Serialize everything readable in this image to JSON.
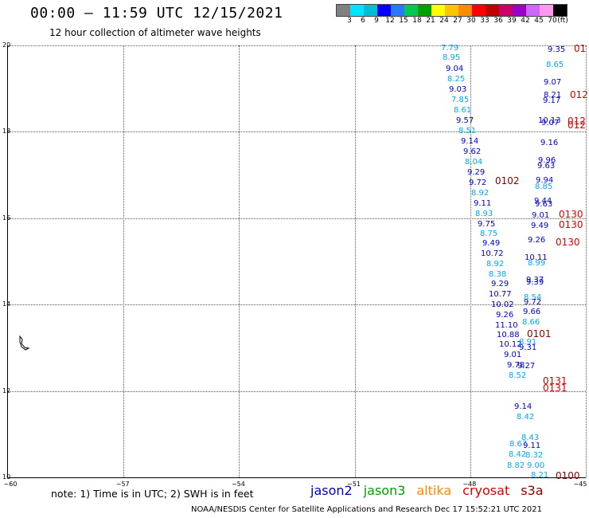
{
  "header": {
    "title": "00:00 – 11:59 UTC 12/15/2021",
    "subtitle": "12 hour collection of altimeter wave heights"
  },
  "legend": {
    "colors": [
      "#808080",
      "#00e5ff",
      "#00bcd4",
      "#0000ff",
      "#2979ff",
      "#00c853",
      "#00a000",
      "#ffff00",
      "#ffc400",
      "#ff8c00",
      "#ff0000",
      "#c00000",
      "#cc0066",
      "#9b00c9",
      "#cc66ff",
      "#ff99ee",
      "#000000"
    ],
    "labels": [
      "3",
      "6",
      "9",
      "12",
      "15",
      "18",
      "21",
      "24",
      "27",
      "30",
      "33",
      "36",
      "39",
      "42",
      "45",
      "70",
      "(ft)"
    ]
  },
  "axes": {
    "y_labels": [
      "20",
      "18",
      "16",
      "14",
      "12",
      "10"
    ],
    "x_labels": [
      "−60",
      "−57",
      "−54",
      "−51",
      "−48",
      "−45"
    ]
  },
  "wave_labels": [
    {
      "text": "7.79",
      "c": "j3"
    },
    {
      "text": "8.95",
      "c": "j3"
    },
    {
      "text": "9.04",
      "c": "j2"
    },
    {
      "text": "8.25",
      "c": "j3"
    },
    {
      "text": "9.03",
      "c": "j2"
    },
    {
      "text": "7.85",
      "c": "j3"
    },
    {
      "text": "8.61",
      "c": "j3"
    },
    {
      "text": "9.57",
      "c": "j2"
    },
    {
      "text": "8.51",
      "c": "j3"
    },
    {
      "text": "9.14",
      "c": "j2"
    },
    {
      "text": "9.62",
      "c": "j2"
    },
    {
      "text": "8.04",
      "c": "j3"
    },
    {
      "text": "9.29",
      "c": "j2"
    },
    {
      "text": "9.72",
      "c": "j2"
    },
    {
      "text": "8.92",
      "c": "j3"
    },
    {
      "text": "9.11",
      "c": "j2"
    },
    {
      "text": "8.93",
      "c": "j3"
    },
    {
      "text": "9.75",
      "c": "j2"
    },
    {
      "text": "8.75",
      "c": "j3"
    },
    {
      "text": "9.49",
      "c": "j2"
    },
    {
      "text": "10.72",
      "c": "j2"
    },
    {
      "text": "8.92",
      "c": "j3"
    },
    {
      "text": "8.38",
      "c": "j3"
    },
    {
      "text": "9.29",
      "c": "j2"
    },
    {
      "text": "10.77",
      "c": "j2"
    },
    {
      "text": "10.02",
      "c": "j2"
    },
    {
      "text": "9.26",
      "c": "j2"
    },
    {
      "text": "11.10",
      "c": "j2"
    },
    {
      "text": "10.88",
      "c": "j2"
    },
    {
      "text": "10.12",
      "c": "j2"
    },
    {
      "text": "9.01",
      "c": "j2"
    },
    {
      "text": "9.78",
      "c": "j2"
    },
    {
      "text": "8.52",
      "c": "j3"
    },
    {
      "text": "9.14",
      "c": "j2"
    },
    {
      "text": "8.42",
      "c": "j3"
    },
    {
      "text": "8.43",
      "c": "j3"
    },
    {
      "text": "9.11",
      "c": "j2"
    },
    {
      "text": "8.32",
      "c": "j3"
    },
    {
      "text": "9.00",
      "c": "j3"
    },
    {
      "text": "8.21",
      "c": "j3"
    },
    {
      "text": "8.82",
      "c": "j3"
    },
    {
      "text": "8.42",
      "c": "j3"
    },
    {
      "text": "8.67",
      "c": "j3"
    },
    {
      "text": "9.35",
      "c": "j2"
    },
    {
      "text": "8.65",
      "c": "j3"
    },
    {
      "text": "9.07",
      "c": "j2"
    },
    {
      "text": "8.21",
      "c": "j2"
    },
    {
      "text": "9.17",
      "c": "j2"
    },
    {
      "text": "10.13",
      "c": "j2"
    },
    {
      "text": "9.07",
      "c": "j2"
    },
    {
      "text": "9.16",
      "c": "j2"
    },
    {
      "text": "9.96",
      "c": "j2"
    },
    {
      "text": "9.63",
      "c": "j2"
    },
    {
      "text": "9.94",
      "c": "j2"
    },
    {
      "text": "8.85",
      "c": "j3"
    },
    {
      "text": "9.44",
      "c": "j2"
    },
    {
      "text": "9.63",
      "c": "j2"
    },
    {
      "text": "9.01",
      "c": "j2"
    },
    {
      "text": "9.49",
      "c": "j2"
    },
    {
      "text": "9.26",
      "c": "j2"
    },
    {
      "text": "10.11",
      "c": "j2"
    },
    {
      "text": "8.99",
      "c": "j3"
    },
    {
      "text": "9.37",
      "c": "j2"
    },
    {
      "text": "9.39",
      "c": "j2"
    },
    {
      "text": "8.54",
      "c": "j3"
    },
    {
      "text": "9.72",
      "c": "j2"
    },
    {
      "text": "9.66",
      "c": "j2"
    },
    {
      "text": "8.66",
      "c": "j3"
    },
    {
      "text": "8.91",
      "c": "j3"
    },
    {
      "text": "9.31",
      "c": "j2"
    },
    {
      "text": "9.27",
      "c": "j2"
    },
    {
      "text": "01",
      "c": "cs"
    },
    {
      "text": "012",
      "c": "cs"
    },
    {
      "text": "012",
      "c": "cs"
    },
    {
      "text": "012",
      "c": "cs"
    },
    {
      "text": "0102",
      "c": "dk"
    },
    {
      "text": "0130",
      "c": "cs"
    },
    {
      "text": "0130",
      "c": "cs"
    },
    {
      "text": "0130",
      "c": "cs"
    },
    {
      "text": "0101",
      "c": "dk"
    },
    {
      "text": "0131",
      "c": "cs"
    },
    {
      "text": "0131",
      "c": "cs"
    },
    {
      "text": "0100",
      "c": "dk"
    }
  ],
  "footer": {
    "note": "note: 1) Time is in UTC; 2) SWH is in feet",
    "missions": [
      {
        "name": "jason2",
        "color": "#0000cc"
      },
      {
        "name": "jason3",
        "color": "#00a000"
      },
      {
        "name": "altika",
        "color": "#ff8800"
      },
      {
        "name": "cryosat",
        "color": "#dd0000"
      },
      {
        "name": "s3a",
        "color": "#880000"
      }
    ],
    "credit": "NOAA/NESDIS Center for Satellite Applications and Research   Dec 17 15:52:21 UTC 2021"
  }
}
